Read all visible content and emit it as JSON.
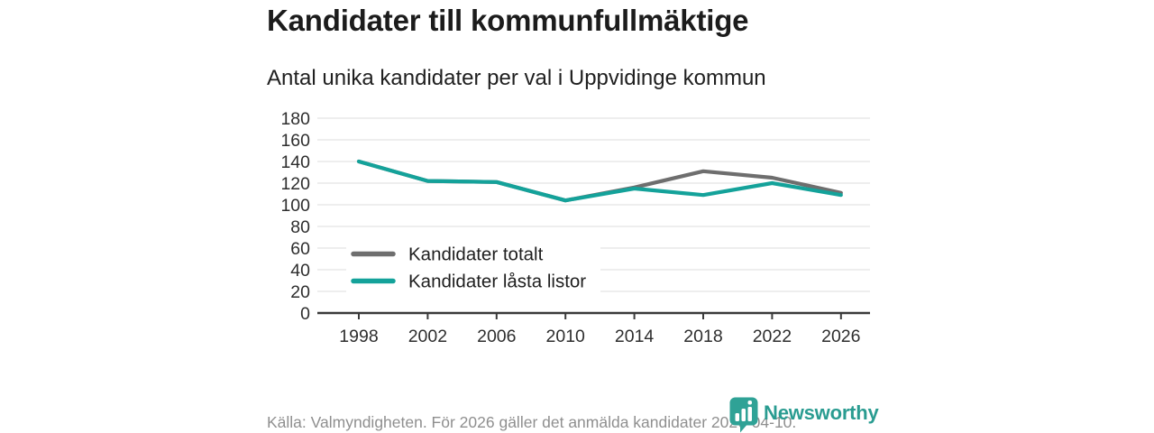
{
  "page": {
    "title": "Kandidater till kommunfullmäktige",
    "subtitle": "Antal unika kandidater per val i Uppvidinge kommun",
    "source_note": "Källa: Valmyndigheten. För 2026 gäller det anmälda kandidater 2026-04-10.",
    "brand": {
      "name": "Newsworthy",
      "icon": "bar-chart-speech-bubble-icon",
      "color": "#2a9c91",
      "icon_color": "#2fa296"
    }
  },
  "chart_data": {
    "type": "line",
    "title": "Kandidater till kommunfullmäktige",
    "subtitle": "Antal unika kandidater per val i Uppvidinge kommun",
    "x": [
      1998,
      2002,
      2006,
      2010,
      2014,
      2018,
      2022,
      2026
    ],
    "series": [
      {
        "name": "Kandidater totalt",
        "color": "#6e6e6e",
        "values": [
          140,
          122,
          121,
          104,
          116,
          131,
          125,
          111
        ]
      },
      {
        "name": "Kandidater låsta listor",
        "color": "#14a29a",
        "values": [
          140,
          122,
          121,
          104,
          115,
          109,
          120,
          109
        ]
      }
    ],
    "xlabel": "",
    "ylabel": "",
    "ylim": [
      0,
      180
    ],
    "ytick_step": 20,
    "yticks": [
      0,
      20,
      40,
      60,
      80,
      100,
      120,
      140,
      160,
      180
    ],
    "grid": "horizontal",
    "legend_position": "inside-bottom-left"
  }
}
